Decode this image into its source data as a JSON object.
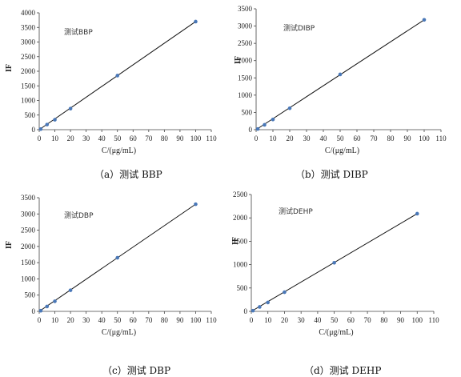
{
  "chart_data": [
    {
      "type": "scatter",
      "annotation": "测试BBP",
      "caption": "（a）测试 BBP",
      "xlabel": "C/(μg/mL)",
      "ylabel": "IF",
      "xlim": [
        0,
        110
      ],
      "ylim": [
        0,
        4000
      ],
      "xticks": [
        "0",
        "10",
        "20",
        "30",
        "40",
        "50",
        "60",
        "70",
        "80",
        "90",
        "100",
        "110"
      ],
      "yticks": [
        "0",
        "500",
        "1000",
        "1500",
        "2000",
        "2500",
        "3000",
        "3500",
        "4000"
      ],
      "x": [
        1,
        5,
        10,
        20,
        50,
        100
      ],
      "y": [
        20,
        175,
        340,
        720,
        1850,
        3700
      ],
      "trendline": {
        "from": [
          0,
          0
        ],
        "to": [
          100,
          3700
        ]
      },
      "marker_color": "#4a78b8",
      "line_color": "#111111"
    },
    {
      "type": "scatter",
      "annotation": "测试DIBP",
      "caption": "（b）测试 DIBP",
      "xlabel": "C/(μg/mL)",
      "ylabel": "IF",
      "xlim": [
        0,
        110
      ],
      "ylim": [
        0,
        3500
      ],
      "xticks": [
        "0",
        "10",
        "20",
        "30",
        "40",
        "50",
        "60",
        "70",
        "80",
        "90",
        "100",
        "110"
      ],
      "yticks": [
        "0",
        "500",
        "1000",
        "1500",
        "2000",
        "2500",
        "3000",
        "3500"
      ],
      "x": [
        1,
        5,
        10,
        20,
        50,
        100
      ],
      "y": [
        20,
        140,
        295,
        620,
        1600,
        3180
      ],
      "trendline": {
        "from": [
          0,
          0
        ],
        "to": [
          100,
          3180
        ]
      },
      "marker_color": "#4a78b8",
      "line_color": "#111111"
    },
    {
      "type": "scatter",
      "annotation": "测试DBP",
      "caption": "（c）测试 DBP",
      "xlabel": "C/(μg/mL)",
      "ylabel": "IF",
      "xlim": [
        0,
        110
      ],
      "ylim": [
        0,
        3500
      ],
      "xticks": [
        "0",
        "10",
        "20",
        "30",
        "40",
        "50",
        "60",
        "70",
        "80",
        "90",
        "100",
        "110"
      ],
      "yticks": [
        "0",
        "500",
        "1000",
        "1500",
        "2000",
        "2500",
        "3000",
        "3500"
      ],
      "x": [
        1,
        5,
        10,
        20,
        50,
        100
      ],
      "y": [
        20,
        150,
        310,
        650,
        1650,
        3300
      ],
      "trendline": {
        "from": [
          0,
          0
        ],
        "to": [
          100,
          3300
        ]
      },
      "marker_color": "#4a78b8",
      "line_color": "#111111"
    },
    {
      "type": "scatter",
      "annotation": "测试DEHP",
      "caption": "（d）测试 DEHP",
      "xlabel": "C/(μg/mL)",
      "ylabel": "IF",
      "xlim": [
        0,
        110
      ],
      "ylim": [
        0,
        2500
      ],
      "xticks": [
        "0",
        "10",
        "20",
        "30",
        "40",
        "50",
        "60",
        "70",
        "80",
        "90",
        "100",
        "110"
      ],
      "yticks": [
        "0",
        "500",
        "1000",
        "1500",
        "2000",
        "2500"
      ],
      "x": [
        1,
        5,
        10,
        20,
        50,
        100
      ],
      "y": [
        15,
        95,
        190,
        410,
        1040,
        2090
      ],
      "trendline": {
        "from": [
          0,
          0
        ],
        "to": [
          100,
          2090
        ]
      },
      "marker_color": "#4a78b8",
      "line_color": "#111111"
    }
  ]
}
